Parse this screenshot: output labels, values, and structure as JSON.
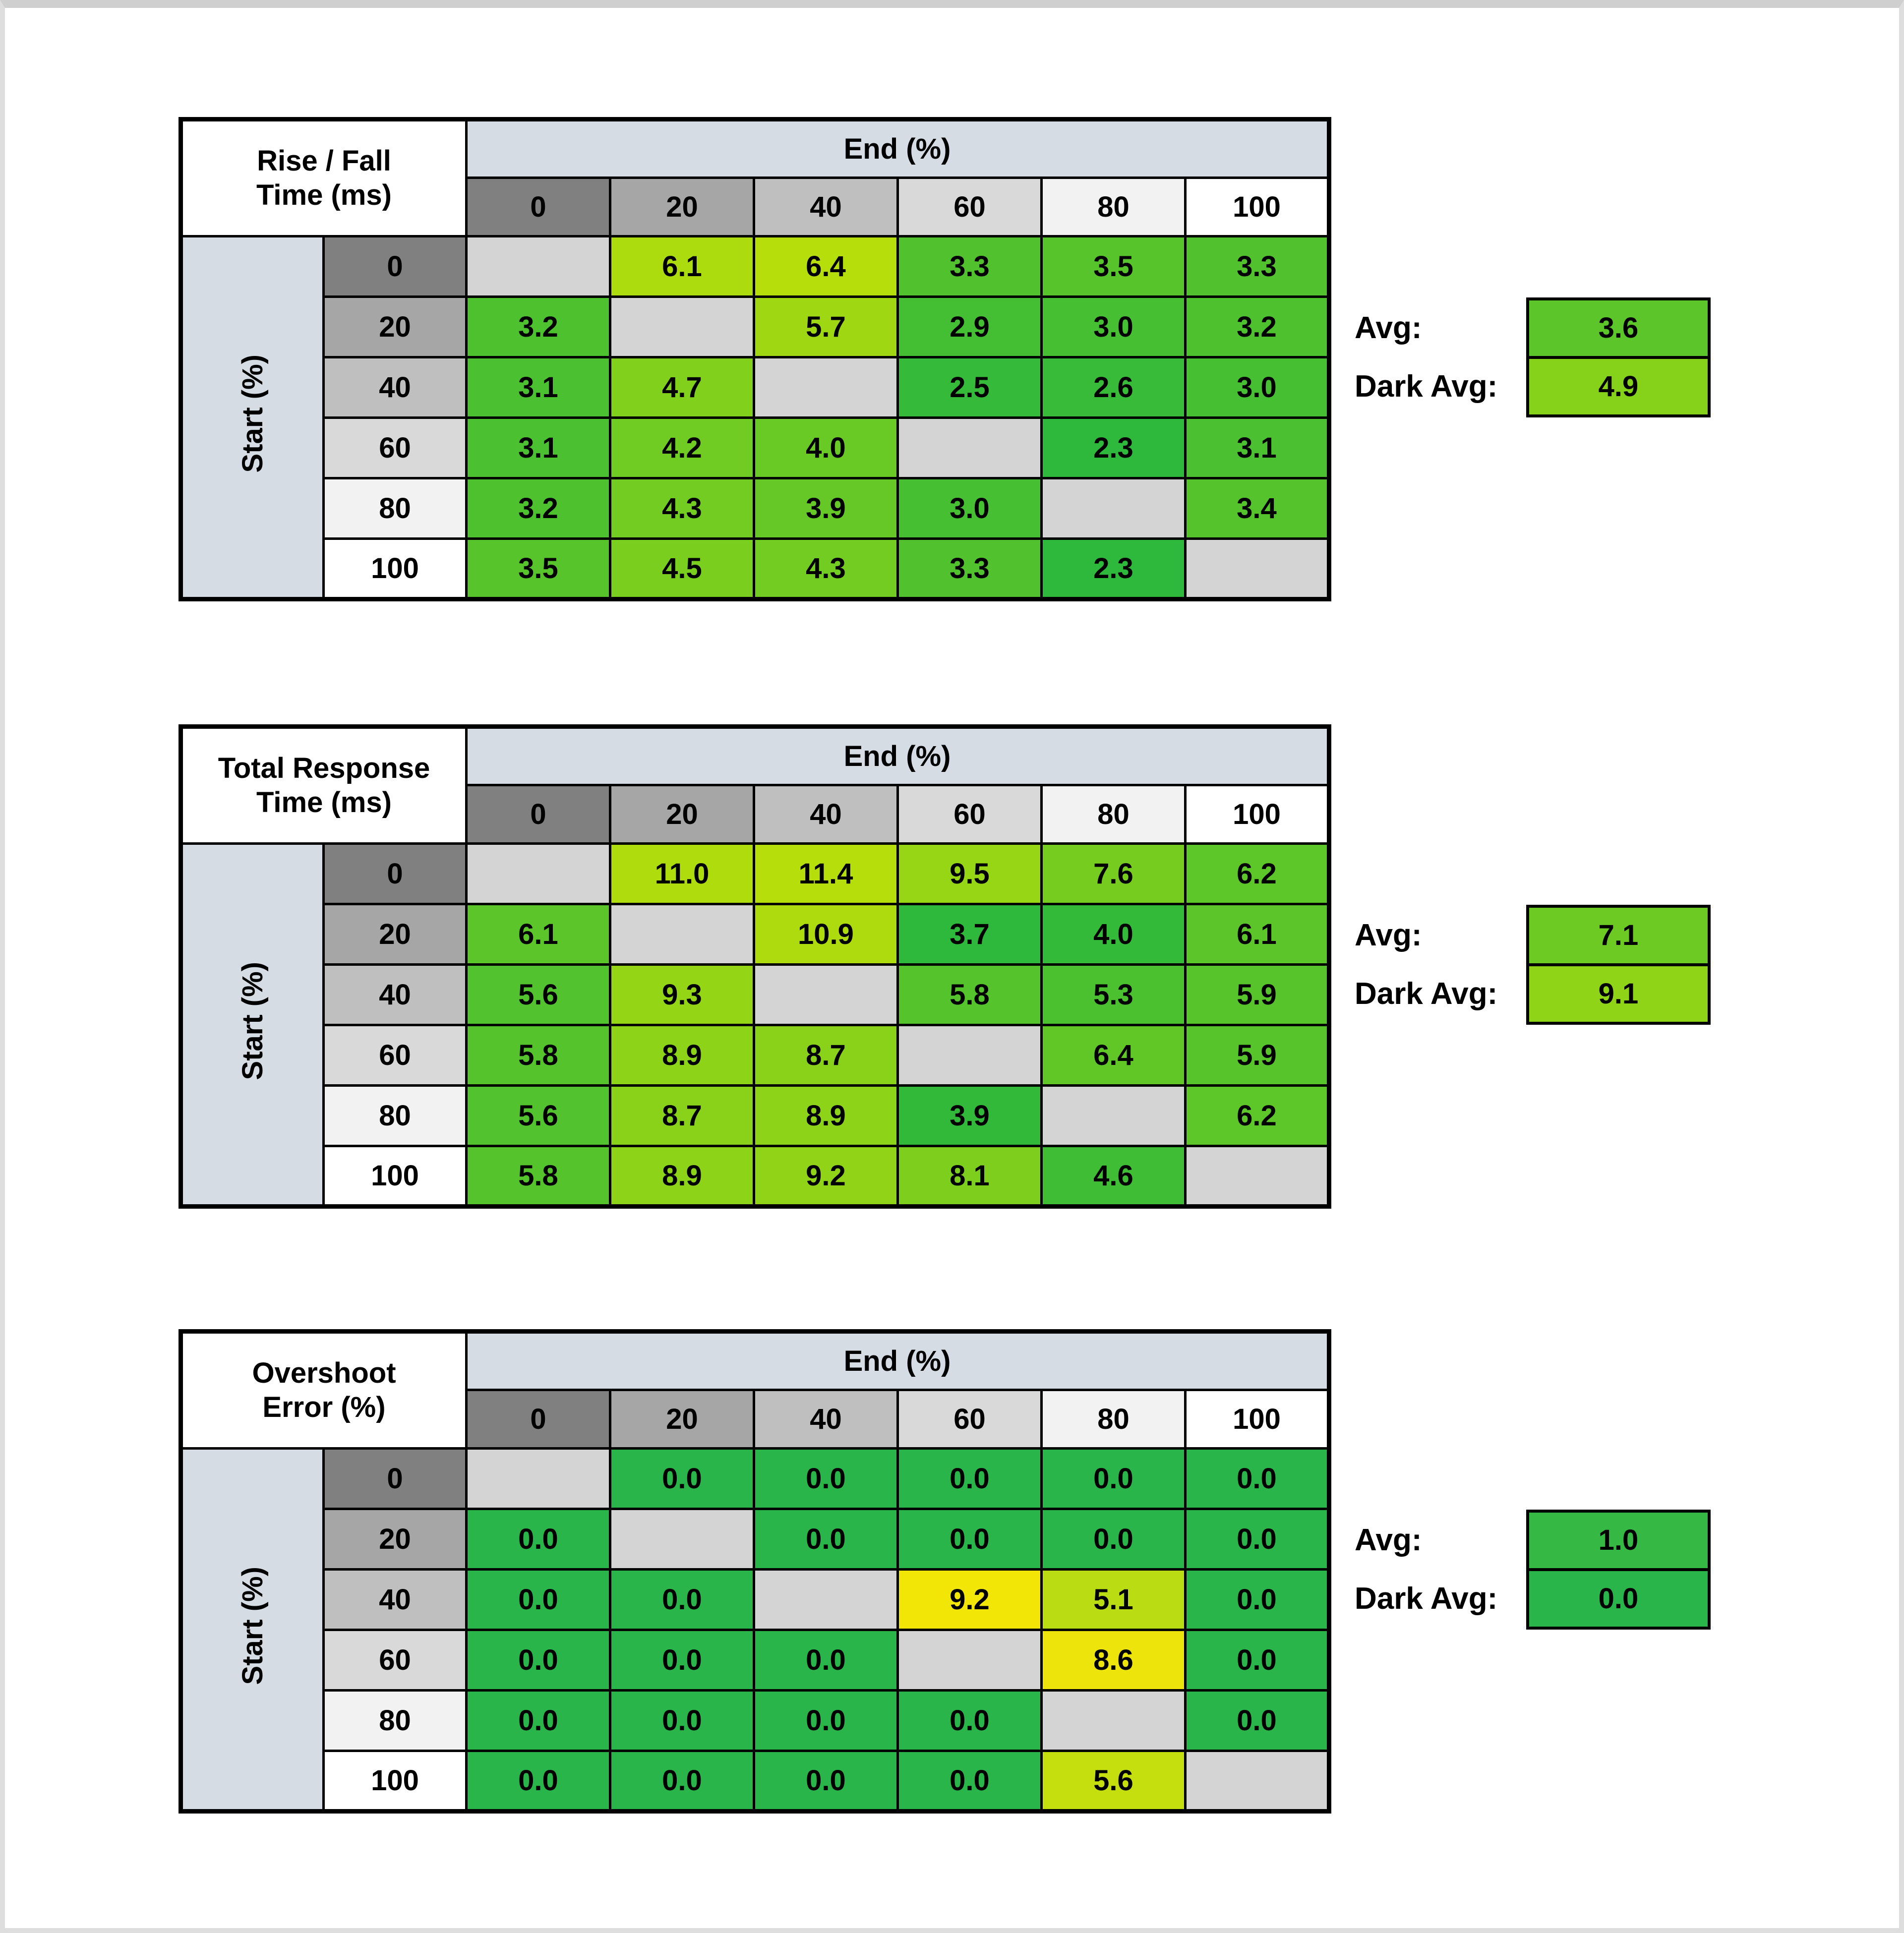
{
  "style": {
    "background": "#FFFFFF",
    "border_color": "#000000",
    "text_color": "#000000",
    "band_color": "#D6DCE4",
    "diag_color": "#D4D4D4",
    "frame_color": "#DEDEDE",
    "header_shades": [
      "#808080",
      "#A6A6A6",
      "#BFBFBF",
      "#D9D9D9",
      "#F2F2F2",
      "#FFFFFF"
    ]
  },
  "chart_data": [
    {
      "type": "heatmap",
      "title_line1": "Rise / Fall",
      "title_line2": "Time (ms)",
      "col_axis_label": "End (%)",
      "row_axis_label": "Start (%)",
      "col_headers": [
        "0",
        "20",
        "40",
        "60",
        "80",
        "100"
      ],
      "row_headers": [
        "0",
        "20",
        "40",
        "60",
        "80",
        "100"
      ],
      "values": [
        [
          null,
          6.1,
          6.4,
          3.3,
          3.5,
          3.3
        ],
        [
          3.2,
          null,
          5.7,
          2.9,
          3.0,
          3.2
        ],
        [
          3.1,
          4.7,
          null,
          2.5,
          2.6,
          3.0
        ],
        [
          3.1,
          4.2,
          4.0,
          null,
          2.3,
          3.1
        ],
        [
          3.2,
          4.3,
          3.9,
          3.0,
          null,
          3.4
        ],
        [
          3.5,
          4.5,
          4.3,
          3.3,
          2.3,
          null
        ]
      ],
      "cell_colors": [
        [
          null,
          "#ACDB0E",
          "#B6DE0A",
          "#51C22E",
          "#58C42B",
          "#51C22E"
        ],
        [
          "#4EC12F",
          null,
          "#9FD813",
          "#44BE33",
          "#47BF32",
          "#4EC12F"
        ],
        [
          "#4BC030",
          "#81D01C",
          null,
          "#35BA39",
          "#38BB38",
          "#47BF32"
        ],
        [
          "#4BC030",
          "#70CB22",
          "#69C925",
          null,
          "#2EB83C",
          "#4BC030"
        ],
        [
          "#4EC12F",
          "#73CC21",
          "#66C826",
          "#47BF32",
          null,
          "#55C32C"
        ],
        [
          "#58C42B",
          "#7ACE1E",
          "#73CC21",
          "#51C22E",
          "#2EB83C",
          null
        ]
      ],
      "avg_label": "Avg:",
      "avg_value": 3.6,
      "avg_color": "#5BC52A",
      "dark_avg_label": "Dark Avg:",
      "dark_avg_value": 4.9,
      "dark_avg_color": "#86D11A"
    },
    {
      "type": "heatmap",
      "title_line1": "Total Response",
      "title_line2": "Time (ms)",
      "col_axis_label": "End (%)",
      "row_axis_label": "Start (%)",
      "col_headers": [
        "0",
        "20",
        "40",
        "60",
        "80",
        "100"
      ],
      "row_headers": [
        "0",
        "20",
        "40",
        "60",
        "80",
        "100"
      ],
      "values": [
        [
          null,
          11.0,
          11.4,
          9.5,
          7.6,
          6.2
        ],
        [
          6.1,
          null,
          10.9,
          3.7,
          4.0,
          6.1
        ],
        [
          5.6,
          9.3,
          null,
          5.8,
          5.3,
          5.9
        ],
        [
          5.8,
          8.9,
          8.7,
          null,
          6.4,
          5.9
        ],
        [
          5.6,
          8.7,
          8.9,
          3.9,
          null,
          6.2
        ],
        [
          5.8,
          8.9,
          9.2,
          8.1,
          4.6,
          null
        ]
      ],
      "cell_colors": [
        [
          null,
          "#AEDC0D",
          "#B6DE0A",
          "#97D615",
          "#76CD20",
          "#5DC629"
        ],
        [
          "#5BC52A",
          null,
          "#ADDB0D",
          "#2EB83C",
          "#34BA39",
          "#5BC52A"
        ],
        [
          "#52C22E",
          "#94D516",
          null,
          "#55C32C",
          "#4CC130",
          "#58C42B"
        ],
        [
          "#55C32C",
          "#8DD318",
          "#89D219",
          null,
          "#61C727",
          "#58C42B"
        ],
        [
          "#52C22E",
          "#89D219",
          "#8DD318",
          "#32B93A",
          null,
          "#5DC629"
        ],
        [
          "#55C32C",
          "#8DD318",
          "#91D417",
          "#7ECF1D",
          "#3FBD35",
          null
        ]
      ],
      "avg_label": "Avg:",
      "avg_value": 7.1,
      "avg_color": "#6CCA23",
      "dark_avg_label": "Dark Avg:",
      "dark_avg_value": 9.1,
      "dark_avg_color": "#90D417"
    },
    {
      "type": "heatmap",
      "title_line1": "Overshoot",
      "title_line2": "Error (%)",
      "col_axis_label": "End (%)",
      "row_axis_label": "Start (%)",
      "col_headers": [
        "0",
        "20",
        "40",
        "60",
        "80",
        "100"
      ],
      "row_headers": [
        "0",
        "20",
        "40",
        "60",
        "80",
        "100"
      ],
      "values": [
        [
          null,
          0.0,
          0.0,
          0.0,
          0.0,
          0.0
        ],
        [
          0.0,
          null,
          0.0,
          0.0,
          0.0,
          0.0
        ],
        [
          0.0,
          0.0,
          null,
          9.2,
          5.1,
          0.0
        ],
        [
          0.0,
          0.0,
          0.0,
          null,
          8.6,
          0.0
        ],
        [
          0.0,
          0.0,
          0.0,
          0.0,
          null,
          0.0
        ],
        [
          0.0,
          0.0,
          0.0,
          0.0,
          5.6,
          null
        ]
      ],
      "cell_colors": [
        [
          null,
          "#29B54A",
          "#29B54A",
          "#29B54A",
          "#29B54A",
          "#29B54A"
        ],
        [
          "#29B54A",
          null,
          "#29B54A",
          "#29B54A",
          "#29B54A",
          "#29B54A"
        ],
        [
          "#29B54A",
          "#29B54A",
          null,
          "#F2E606",
          "#BADC12",
          "#29B54A"
        ],
        [
          "#29B54A",
          "#29B54A",
          "#29B54A",
          null,
          "#EDE40B",
          "#29B54A"
        ],
        [
          "#29B54A",
          "#29B54A",
          "#29B54A",
          "#29B54A",
          null,
          "#29B54A"
        ],
        [
          "#29B54A",
          "#29B54A",
          "#29B54A",
          "#29B54A",
          "#C5DE0E",
          null
        ]
      ],
      "avg_label": "Avg:",
      "avg_value": 1.0,
      "avg_color": "#35B944",
      "dark_avg_label": "Dark Avg:",
      "dark_avg_value": 0.0,
      "dark_avg_color": "#29B54A"
    }
  ]
}
